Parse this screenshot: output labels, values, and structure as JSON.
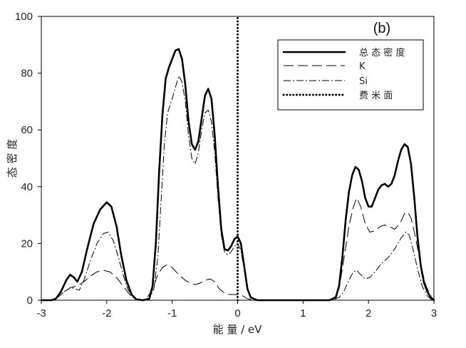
{
  "chart_data": {
    "type": "line",
    "panel_label": "(b)",
    "xlabel": "能 量 / eV",
    "ylabel": "态 密 度",
    "xlim": [
      -3,
      3
    ],
    "ylim": [
      0,
      100
    ],
    "xticks": [
      -3,
      -2,
      -1,
      0,
      1,
      2,
      3
    ],
    "yticks": [
      0,
      20,
      40,
      60,
      80,
      100
    ],
    "grid": false,
    "legend_position": "top-right",
    "series": [
      {
        "name": "总 态 密 度",
        "style": "solid-thick",
        "points": [
          [
            -3.0,
            0
          ],
          [
            -2.85,
            0
          ],
          [
            -2.78,
            0.5
          ],
          [
            -2.7,
            3
          ],
          [
            -2.62,
            7
          ],
          [
            -2.56,
            9
          ],
          [
            -2.5,
            8
          ],
          [
            -2.45,
            6.5
          ],
          [
            -2.38,
            10
          ],
          [
            -2.3,
            18
          ],
          [
            -2.2,
            27
          ],
          [
            -2.1,
            32
          ],
          [
            -2.0,
            34.5
          ],
          [
            -1.93,
            33
          ],
          [
            -1.85,
            26
          ],
          [
            -1.78,
            16
          ],
          [
            -1.7,
            7
          ],
          [
            -1.62,
            2
          ],
          [
            -1.55,
            0.3
          ],
          [
            -1.45,
            0
          ],
          [
            -1.35,
            0.5
          ],
          [
            -1.3,
            5
          ],
          [
            -1.25,
            20
          ],
          [
            -1.2,
            45
          ],
          [
            -1.15,
            65
          ],
          [
            -1.1,
            78
          ],
          [
            -1.05,
            82
          ],
          [
            -1.0,
            85
          ],
          [
            -0.95,
            88
          ],
          [
            -0.9,
            88.5
          ],
          [
            -0.85,
            85
          ],
          [
            -0.8,
            76
          ],
          [
            -0.75,
            63
          ],
          [
            -0.7,
            55
          ],
          [
            -0.65,
            53
          ],
          [
            -0.6,
            56
          ],
          [
            -0.55,
            64
          ],
          [
            -0.5,
            72
          ],
          [
            -0.45,
            74.5
          ],
          [
            -0.4,
            71
          ],
          [
            -0.35,
            58
          ],
          [
            -0.3,
            40
          ],
          [
            -0.25,
            25
          ],
          [
            -0.2,
            18
          ],
          [
            -0.15,
            17.5
          ],
          [
            -0.1,
            19
          ],
          [
            -0.05,
            21.5
          ],
          [
            0.0,
            22.5
          ],
          [
            0.05,
            20
          ],
          [
            0.1,
            12
          ],
          [
            0.15,
            4
          ],
          [
            0.2,
            1
          ],
          [
            0.3,
            0
          ],
          [
            1.4,
            0
          ],
          [
            1.5,
            1
          ],
          [
            1.55,
            5
          ],
          [
            1.6,
            15
          ],
          [
            1.65,
            28
          ],
          [
            1.7,
            38
          ],
          [
            1.75,
            44
          ],
          [
            1.8,
            47
          ],
          [
            1.85,
            46
          ],
          [
            1.9,
            42
          ],
          [
            1.95,
            36
          ],
          [
            2.0,
            33
          ],
          [
            2.05,
            33
          ],
          [
            2.1,
            36
          ],
          [
            2.15,
            39
          ],
          [
            2.2,
            40.5
          ],
          [
            2.25,
            41
          ],
          [
            2.3,
            40
          ],
          [
            2.35,
            41
          ],
          [
            2.4,
            44
          ],
          [
            2.45,
            49
          ],
          [
            2.5,
            53
          ],
          [
            2.55,
            55
          ],
          [
            2.6,
            54
          ],
          [
            2.65,
            48
          ],
          [
            2.7,
            36
          ],
          [
            2.75,
            22
          ],
          [
            2.8,
            12
          ],
          [
            2.85,
            6
          ],
          [
            2.9,
            3
          ],
          [
            2.95,
            1
          ],
          [
            3.0,
            0
          ]
        ]
      },
      {
        "name": "K",
        "style": "long-dash",
        "points": [
          [
            -3.0,
            0
          ],
          [
            -2.85,
            0
          ],
          [
            -2.75,
            1
          ],
          [
            -2.65,
            3
          ],
          [
            -2.55,
            4.5
          ],
          [
            -2.45,
            5
          ],
          [
            -2.35,
            6.5
          ],
          [
            -2.25,
            8.5
          ],
          [
            -2.15,
            10
          ],
          [
            -2.05,
            10.5
          ],
          [
            -1.95,
            10
          ],
          [
            -1.85,
            8
          ],
          [
            -1.75,
            5
          ],
          [
            -1.65,
            2
          ],
          [
            -1.55,
            0.5
          ],
          [
            -1.45,
            0
          ],
          [
            -1.38,
            1
          ],
          [
            -1.3,
            4
          ],
          [
            -1.22,
            9
          ],
          [
            -1.15,
            11.5
          ],
          [
            -1.08,
            12.5
          ],
          [
            -1.0,
            11.5
          ],
          [
            -0.9,
            9
          ],
          [
            -0.8,
            7
          ],
          [
            -0.72,
            6
          ],
          [
            -0.65,
            5.5
          ],
          [
            -0.58,
            6
          ],
          [
            -0.5,
            7
          ],
          [
            -0.42,
            7.5
          ],
          [
            -0.35,
            6.5
          ],
          [
            -0.28,
            4
          ],
          [
            -0.2,
            2.5
          ],
          [
            -0.12,
            2
          ],
          [
            -0.05,
            2
          ],
          [
            0.0,
            2
          ],
          [
            0.08,
            1.5
          ],
          [
            0.15,
            0.5
          ],
          [
            0.25,
            0
          ],
          [
            1.45,
            0
          ],
          [
            1.55,
            4
          ],
          [
            1.62,
            14
          ],
          [
            1.7,
            26
          ],
          [
            1.77,
            33
          ],
          [
            1.82,
            36
          ],
          [
            1.88,
            33
          ],
          [
            1.95,
            27
          ],
          [
            2.02,
            24
          ],
          [
            2.1,
            24.5
          ],
          [
            2.18,
            26
          ],
          [
            2.25,
            26.5
          ],
          [
            2.32,
            26
          ],
          [
            2.4,
            25
          ],
          [
            2.48,
            27
          ],
          [
            2.55,
            30.5
          ],
          [
            2.6,
            31
          ],
          [
            2.65,
            29
          ],
          [
            2.72,
            22
          ],
          [
            2.8,
            12
          ],
          [
            2.88,
            5
          ],
          [
            2.95,
            1.5
          ],
          [
            3.0,
            0
          ]
        ]
      },
      {
        "name": "Si",
        "style": "dash-dot",
        "points": [
          [
            -3.0,
            0
          ],
          [
            -2.85,
            0
          ],
          [
            -2.75,
            1
          ],
          [
            -2.65,
            3
          ],
          [
            -2.55,
            4.5
          ],
          [
            -2.48,
            4
          ],
          [
            -2.42,
            3.5
          ],
          [
            -2.35,
            7
          ],
          [
            -2.25,
            14
          ],
          [
            -2.15,
            20
          ],
          [
            -2.05,
            23.5
          ],
          [
            -1.98,
            24
          ],
          [
            -1.9,
            21
          ],
          [
            -1.82,
            15
          ],
          [
            -1.75,
            9
          ],
          [
            -1.68,
            4
          ],
          [
            -1.6,
            1
          ],
          [
            -1.5,
            0
          ],
          [
            -1.35,
            0.5
          ],
          [
            -1.28,
            4
          ],
          [
            -1.22,
            15
          ],
          [
            -1.17,
            35
          ],
          [
            -1.12,
            55
          ],
          [
            -1.07,
            66
          ],
          [
            -1.0,
            71
          ],
          [
            -0.95,
            75
          ],
          [
            -0.9,
            79
          ],
          [
            -0.85,
            77
          ],
          [
            -0.8,
            70
          ],
          [
            -0.75,
            58
          ],
          [
            -0.7,
            50
          ],
          [
            -0.65,
            48
          ],
          [
            -0.6,
            52
          ],
          [
            -0.55,
            60
          ],
          [
            -0.5,
            66
          ],
          [
            -0.45,
            67
          ],
          [
            -0.4,
            63
          ],
          [
            -0.35,
            52
          ],
          [
            -0.3,
            36
          ],
          [
            -0.25,
            23
          ],
          [
            -0.2,
            17
          ],
          [
            -0.15,
            16
          ],
          [
            -0.1,
            17
          ],
          [
            -0.05,
            19
          ],
          [
            0.0,
            20
          ],
          [
            0.05,
            17.5
          ],
          [
            0.1,
            11
          ],
          [
            0.15,
            4
          ],
          [
            0.2,
            1
          ],
          [
            0.3,
            0
          ],
          [
            1.45,
            0
          ],
          [
            1.55,
            1
          ],
          [
            1.62,
            3
          ],
          [
            1.7,
            7
          ],
          [
            1.77,
            10
          ],
          [
            1.82,
            10.5
          ],
          [
            1.88,
            9
          ],
          [
            1.95,
            7.5
          ],
          [
            2.02,
            8
          ],
          [
            2.1,
            10
          ],
          [
            2.2,
            13
          ],
          [
            2.3,
            15
          ],
          [
            2.4,
            18
          ],
          [
            2.5,
            22
          ],
          [
            2.57,
            24
          ],
          [
            2.62,
            23
          ],
          [
            2.68,
            18
          ],
          [
            2.75,
            11
          ],
          [
            2.82,
            5
          ],
          [
            2.9,
            1.5
          ],
          [
            2.96,
            0.3
          ],
          [
            3.0,
            0
          ]
        ]
      },
      {
        "name": "费 米 面",
        "style": "dotted-thick",
        "points": [
          [
            0,
            0
          ],
          [
            0,
            100
          ]
        ]
      }
    ]
  }
}
